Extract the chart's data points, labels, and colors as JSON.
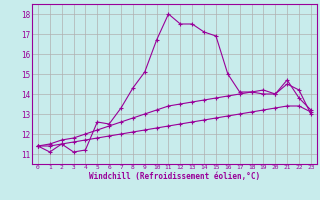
{
  "xlabel": "Windchill (Refroidissement éolien,°C)",
  "bg_color": "#c8ecec",
  "line_color": "#990099",
  "grid_color": "#b0b0b0",
  "ylim": [
    10.5,
    18.5
  ],
  "xlim": [
    -0.5,
    23.5
  ],
  "yticks": [
    11,
    12,
    13,
    14,
    15,
    16,
    17,
    18
  ],
  "xticks": [
    0,
    1,
    2,
    3,
    4,
    5,
    6,
    7,
    8,
    9,
    10,
    11,
    12,
    13,
    14,
    15,
    16,
    17,
    18,
    19,
    20,
    21,
    22,
    23
  ],
  "series1_x": [
    0,
    1,
    2,
    3,
    4,
    5,
    6,
    7,
    8,
    9,
    10,
    11,
    12,
    13,
    14,
    15,
    16,
    17,
    18,
    19,
    20,
    21,
    22,
    23
  ],
  "series1_y": [
    11.4,
    11.1,
    11.5,
    11.1,
    11.2,
    12.6,
    12.5,
    13.3,
    14.3,
    15.1,
    16.7,
    18.0,
    17.5,
    17.5,
    17.1,
    16.9,
    15.0,
    14.1,
    14.1,
    14.0,
    14.0,
    14.7,
    13.8,
    13.2
  ],
  "series2_x": [
    0,
    1,
    2,
    3,
    4,
    5,
    6,
    7,
    8,
    9,
    10,
    11,
    12,
    13,
    14,
    15,
    16,
    17,
    18,
    19,
    20,
    21,
    22,
    23
  ],
  "series2_y": [
    11.4,
    11.5,
    11.7,
    11.8,
    12.0,
    12.2,
    12.4,
    12.6,
    12.8,
    13.0,
    13.2,
    13.4,
    13.5,
    13.6,
    13.7,
    13.8,
    13.9,
    14.0,
    14.1,
    14.2,
    14.0,
    14.5,
    14.2,
    13.0
  ],
  "series3_x": [
    0,
    1,
    2,
    3,
    4,
    5,
    6,
    7,
    8,
    9,
    10,
    11,
    12,
    13,
    14,
    15,
    16,
    17,
    18,
    19,
    20,
    21,
    22,
    23
  ],
  "series3_y": [
    11.4,
    11.4,
    11.5,
    11.6,
    11.7,
    11.8,
    11.9,
    12.0,
    12.1,
    12.2,
    12.3,
    12.4,
    12.5,
    12.6,
    12.7,
    12.8,
    12.9,
    13.0,
    13.1,
    13.2,
    13.3,
    13.4,
    13.4,
    13.1
  ]
}
